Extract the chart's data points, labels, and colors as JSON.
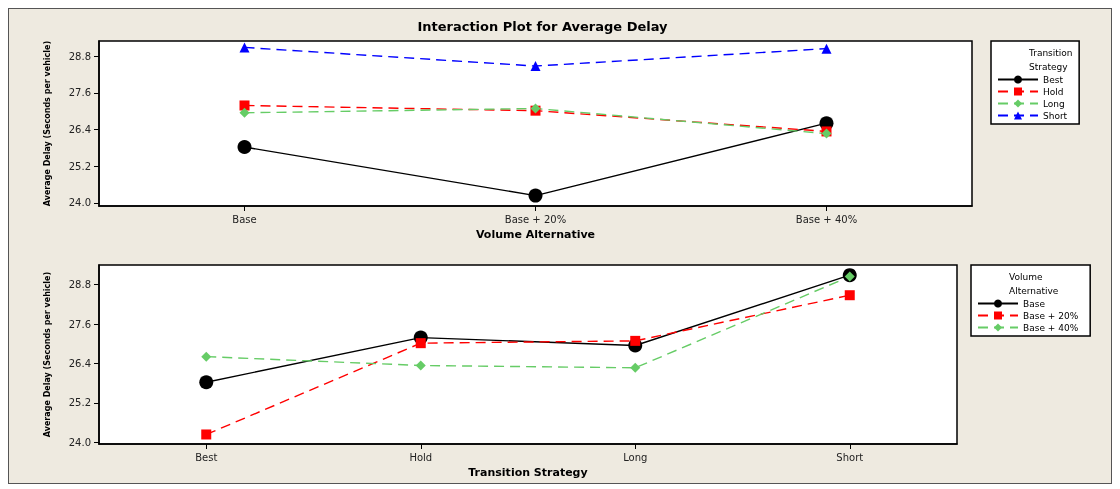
{
  "chart_data": [
    {
      "type": "line",
      "title": "Interaction Plot for Average Delay",
      "xlabel": "Volume Alternative",
      "ylabel": "Average Delay (Seconds per vehicle)",
      "legend_title": "Transition Strategy",
      "legend": "right",
      "grid": false,
      "categories": [
        "Base",
        "Base + 20%",
        "Base + 40%"
      ],
      "ylim": [
        23.9,
        29.3
      ],
      "yticks": [
        {
          "value": 24,
          "label": "24.0"
        },
        {
          "value": 25.2,
          "label": "25.2"
        },
        {
          "value": 26.4,
          "label": "26.4"
        },
        {
          "value": 27.6,
          "label": "27.6"
        },
        {
          "value": 28.8,
          "label": "28.8"
        }
      ],
      "series": [
        {
          "name": "Best",
          "color": "#000000",
          "marker": "circle",
          "line_style": "solid",
          "values": [
            25.83,
            24.24,
            26.61
          ]
        },
        {
          "name": "Hold",
          "color": "#ff0000",
          "marker": "square",
          "line_style": "dashed",
          "values": [
            27.19,
            27.02,
            26.34
          ]
        },
        {
          "name": "Long",
          "color": "#66cc66",
          "marker": "diamond",
          "line_style": "dashed",
          "values": [
            26.95,
            27.09,
            26.27
          ]
        },
        {
          "name": "Short",
          "color": "#0000ff",
          "marker": "triangle",
          "line_style": "dashed",
          "values": [
            29.09,
            28.48,
            29.05
          ]
        }
      ]
    },
    {
      "type": "line",
      "xlabel": "Transition Strategy",
      "ylabel": "Average Delay (Seconds per vehicle)",
      "legend_title": "Volume Alternative",
      "legend": "right",
      "grid": false,
      "categories": [
        "Best",
        "Hold",
        "Long",
        "Short"
      ],
      "ylim": [
        23.95,
        29.4
      ],
      "yticks": [
        {
          "value": 24,
          "label": "24.0"
        },
        {
          "value": 25.2,
          "label": "25.2"
        },
        {
          "value": 26.4,
          "label": "26.4"
        },
        {
          "value": 27.6,
          "label": "27.6"
        },
        {
          "value": 28.8,
          "label": "28.8"
        }
      ],
      "series": [
        {
          "name": "Base",
          "color": "#000000",
          "marker": "circle",
          "line_style": "solid",
          "values": [
            25.83,
            27.19,
            26.95,
            29.09
          ]
        },
        {
          "name": "Base + 20%",
          "color": "#ff0000",
          "marker": "square",
          "line_style": "dashed",
          "values": [
            24.24,
            27.02,
            27.09,
            28.48
          ]
        },
        {
          "name": "Base + 40%",
          "color": "#66cc66",
          "marker": "diamond",
          "line_style": "dashed",
          "values": [
            26.61,
            26.34,
            26.27,
            29.05
          ]
        }
      ]
    }
  ]
}
